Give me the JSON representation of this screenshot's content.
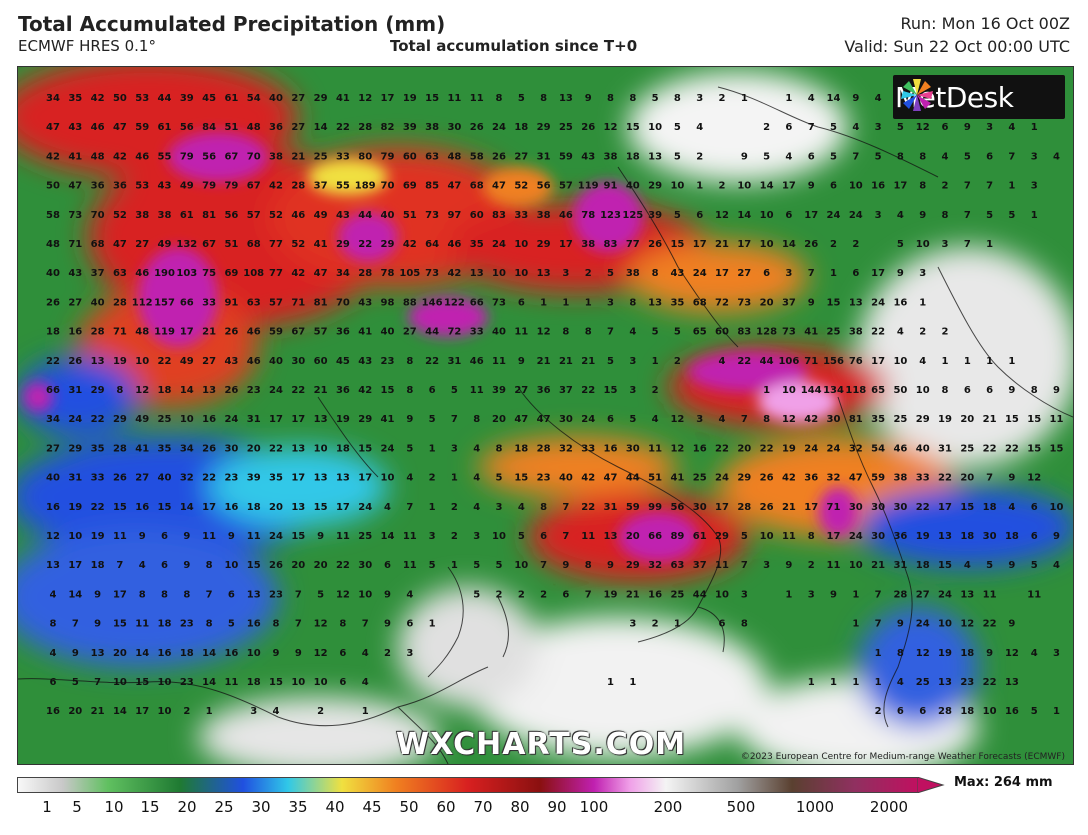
{
  "header": {
    "title": "Total Accumulated Precipitation (mm)",
    "model": "ECMWF HRES 0.1°",
    "subtitle": "Total accumulation since T+0",
    "run": "Run: Mon 16 Oct 00Z",
    "valid": "Valid: Sun 22 Oct 00:00 UTC"
  },
  "map": {
    "logo_text": "MetDesk",
    "watermark": "WXCHARTS.COM",
    "copyright": "©2023 European Centre for Medium-range Weather Forecasts (ECMWF)",
    "grid_values": [
      [
        "34",
        "35",
        "42",
        "50",
        "53",
        "44",
        "39",
        "45",
        "61",
        "54",
        "40",
        "27",
        "29",
        "41",
        "12",
        "17",
        "19",
        "15",
        "11",
        "11",
        "8",
        "5",
        "8",
        "13",
        "9",
        "8",
        "8",
        "5",
        "8",
        "3",
        "2",
        "1",
        "",
        "1",
        "4",
        "14",
        "9",
        "4"
      ],
      [
        "47",
        "43",
        "46",
        "47",
        "59",
        "61",
        "56",
        "84",
        "51",
        "48",
        "36",
        "27",
        "14",
        "22",
        "28",
        "82",
        "39",
        "38",
        "30",
        "26",
        "24",
        "18",
        "29",
        "25",
        "26",
        "12",
        "15",
        "10",
        "5",
        "4",
        "",
        "",
        "2",
        "6",
        "7",
        "5",
        "4",
        "3",
        "5",
        "12",
        "6",
        "9",
        "3",
        "4",
        "1"
      ],
      [
        "42",
        "41",
        "48",
        "42",
        "46",
        "55",
        "79",
        "56",
        "67",
        "70",
        "38",
        "21",
        "25",
        "33",
        "80",
        "79",
        "60",
        "63",
        "48",
        "58",
        "26",
        "27",
        "31",
        "59",
        "43",
        "38",
        "18",
        "13",
        "5",
        "2",
        "",
        "9",
        "5",
        "4",
        "6",
        "5",
        "7",
        "5",
        "8",
        "8",
        "4",
        "5",
        "6",
        "7",
        "3",
        "4"
      ],
      [
        "50",
        "47",
        "36",
        "36",
        "53",
        "43",
        "49",
        "79",
        "79",
        "67",
        "42",
        "28",
        "37",
        "55",
        "189",
        "70",
        "69",
        "85",
        "47",
        "68",
        "47",
        "52",
        "56",
        "57",
        "119",
        "91",
        "40",
        "29",
        "10",
        "1",
        "2",
        "10",
        "14",
        "17",
        "9",
        "6",
        "10",
        "16",
        "17",
        "8",
        "2",
        "7",
        "7",
        "1",
        "3"
      ],
      [
        "58",
        "73",
        "70",
        "52",
        "38",
        "38",
        "61",
        "81",
        "56",
        "57",
        "52",
        "46",
        "49",
        "43",
        "44",
        "40",
        "51",
        "73",
        "97",
        "60",
        "83",
        "33",
        "38",
        "46",
        "78",
        "123",
        "125",
        "39",
        "5",
        "6",
        "12",
        "14",
        "10",
        "6",
        "17",
        "24",
        "24",
        "3",
        "4",
        "9",
        "8",
        "7",
        "5",
        "5",
        "1"
      ],
      [
        "48",
        "71",
        "68",
        "47",
        "27",
        "49",
        "132",
        "67",
        "51",
        "68",
        "77",
        "52",
        "41",
        "29",
        "22",
        "29",
        "42",
        "64",
        "46",
        "35",
        "24",
        "10",
        "29",
        "17",
        "38",
        "83",
        "77",
        "26",
        "15",
        "17",
        "21",
        "17",
        "10",
        "14",
        "26",
        "2",
        "2",
        "",
        "5",
        "10",
        "3",
        "7",
        "1"
      ],
      [
        "40",
        "43",
        "37",
        "63",
        "46",
        "190",
        "103",
        "75",
        "69",
        "108",
        "77",
        "42",
        "47",
        "34",
        "28",
        "78",
        "105",
        "73",
        "42",
        "13",
        "10",
        "10",
        "13",
        "3",
        "2",
        "5",
        "38",
        "8",
        "43",
        "24",
        "17",
        "27",
        "6",
        "3",
        "7",
        "1",
        "6",
        "17",
        "9",
        "3"
      ],
      [
        "26",
        "27",
        "40",
        "28",
        "112",
        "157",
        "66",
        "33",
        "91",
        "63",
        "57",
        "71",
        "81",
        "70",
        "43",
        "98",
        "88",
        "146",
        "122",
        "66",
        "73",
        "6",
        "1",
        "1",
        "1",
        "3",
        "8",
        "13",
        "35",
        "68",
        "72",
        "73",
        "20",
        "37",
        "9",
        "15",
        "13",
        "24",
        "16",
        "1"
      ],
      [
        "18",
        "16",
        "28",
        "71",
        "48",
        "119",
        "17",
        "21",
        "26",
        "46",
        "59",
        "67",
        "57",
        "36",
        "41",
        "40",
        "27",
        "44",
        "72",
        "33",
        "40",
        "11",
        "12",
        "8",
        "8",
        "7",
        "4",
        "5",
        "5",
        "65",
        "60",
        "83",
        "128",
        "73",
        "41",
        "25",
        "38",
        "22",
        "4",
        "2",
        "2"
      ],
      [
        "22",
        "26",
        "13",
        "19",
        "10",
        "22",
        "49",
        "27",
        "43",
        "46",
        "40",
        "30",
        "60",
        "45",
        "43",
        "23",
        "8",
        "22",
        "31",
        "46",
        "11",
        "9",
        "21",
        "21",
        "21",
        "5",
        "3",
        "1",
        "2",
        "",
        "4",
        "22",
        "44",
        "106",
        "71",
        "156",
        "76",
        "17",
        "10",
        "4",
        "1",
        "1",
        "1",
        "1"
      ],
      [
        "66",
        "31",
        "29",
        "8",
        "12",
        "18",
        "14",
        "13",
        "26",
        "23",
        "24",
        "22",
        "21",
        "36",
        "42",
        "15",
        "8",
        "6",
        "5",
        "11",
        "39",
        "27",
        "36",
        "37",
        "22",
        "15",
        "3",
        "2",
        "",
        "",
        "",
        "",
        "1",
        "10",
        "144",
        "134",
        "118",
        "65",
        "50",
        "10",
        "8",
        "6",
        "6",
        "9",
        "8",
        "9",
        "5"
      ],
      [
        "34",
        "24",
        "22",
        "29",
        "49",
        "25",
        "10",
        "16",
        "24",
        "31",
        "17",
        "17",
        "13",
        "19",
        "29",
        "41",
        "9",
        "5",
        "7",
        "8",
        "20",
        "47",
        "47",
        "30",
        "24",
        "6",
        "5",
        "4",
        "12",
        "3",
        "4",
        "7",
        "8",
        "12",
        "42",
        "30",
        "81",
        "35",
        "25",
        "29",
        "19",
        "20",
        "21",
        "15",
        "15",
        "11"
      ],
      [
        "27",
        "29",
        "35",
        "28",
        "41",
        "35",
        "34",
        "26",
        "30",
        "20",
        "22",
        "13",
        "10",
        "18",
        "15",
        "24",
        "5",
        "1",
        "3",
        "4",
        "8",
        "18",
        "28",
        "32",
        "33",
        "16",
        "30",
        "11",
        "12",
        "16",
        "22",
        "20",
        "22",
        "19",
        "24",
        "24",
        "32",
        "54",
        "46",
        "40",
        "31",
        "25",
        "22",
        "22",
        "15",
        "15"
      ],
      [
        "40",
        "31",
        "33",
        "26",
        "27",
        "40",
        "32",
        "22",
        "23",
        "39",
        "35",
        "17",
        "13",
        "13",
        "17",
        "10",
        "4",
        "2",
        "1",
        "4",
        "5",
        "15",
        "23",
        "40",
        "42",
        "47",
        "44",
        "51",
        "41",
        "25",
        "24",
        "29",
        "26",
        "42",
        "36",
        "32",
        "47",
        "59",
        "38",
        "33",
        "22",
        "20",
        "7",
        "9",
        "12"
      ],
      [
        "16",
        "19",
        "22",
        "15",
        "16",
        "15",
        "14",
        "17",
        "16",
        "18",
        "20",
        "13",
        "15",
        "17",
        "24",
        "4",
        "7",
        "1",
        "2",
        "4",
        "3",
        "4",
        "8",
        "7",
        "22",
        "31",
        "59",
        "99",
        "56",
        "30",
        "17",
        "28",
        "26",
        "21",
        "17",
        "71",
        "30",
        "30",
        "30",
        "22",
        "17",
        "15",
        "18",
        "4",
        "6",
        "10"
      ],
      [
        "12",
        "10",
        "19",
        "11",
        "9",
        "6",
        "9",
        "11",
        "9",
        "11",
        "24",
        "15",
        "9",
        "11",
        "25",
        "14",
        "11",
        "3",
        "2",
        "3",
        "10",
        "5",
        "6",
        "7",
        "11",
        "13",
        "20",
        "66",
        "89",
        "61",
        "29",
        "5",
        "10",
        "11",
        "8",
        "17",
        "24",
        "30",
        "36",
        "19",
        "13",
        "18",
        "30",
        "18",
        "6",
        "9"
      ],
      [
        "13",
        "17",
        "18",
        "7",
        "4",
        "6",
        "9",
        "8",
        "10",
        "15",
        "26",
        "20",
        "20",
        "22",
        "30",
        "6",
        "11",
        "5",
        "1",
        "5",
        "5",
        "10",
        "7",
        "9",
        "8",
        "9",
        "29",
        "32",
        "63",
        "37",
        "11",
        "7",
        "3",
        "9",
        "2",
        "11",
        "10",
        "21",
        "31",
        "18",
        "15",
        "4",
        "5",
        "9",
        "5",
        "4"
      ],
      [
        "4",
        "14",
        "9",
        "17",
        "8",
        "8",
        "8",
        "7",
        "6",
        "13",
        "23",
        "7",
        "5",
        "12",
        "10",
        "9",
        "4",
        "",
        "",
        "5",
        "2",
        "2",
        "2",
        "6",
        "7",
        "19",
        "21",
        "16",
        "25",
        "44",
        "10",
        "3",
        "",
        "1",
        "3",
        "9",
        "1",
        "7",
        "28",
        "27",
        "24",
        "13",
        "11",
        "",
        "11"
      ],
      [
        "8",
        "7",
        "9",
        "15",
        "11",
        "18",
        "23",
        "8",
        "5",
        "16",
        "8",
        "7",
        "12",
        "8",
        "7",
        "9",
        "6",
        "1",
        "",
        "",
        "",
        "",
        "",
        "",
        "",
        "",
        "3",
        "2",
        "1",
        "",
        "6",
        "8",
        "",
        "",
        "",
        "",
        "1",
        "7",
        "9",
        "24",
        "10",
        "12",
        "22",
        "9"
      ],
      [
        "4",
        "9",
        "13",
        "20",
        "14",
        "16",
        "18",
        "14",
        "16",
        "10",
        "9",
        "9",
        "12",
        "6",
        "4",
        "2",
        "3",
        "",
        "",
        "",
        "",
        "",
        "",
        "",
        "",
        "",
        "",
        "",
        "",
        "",
        "",
        "",
        "",
        "",
        "",
        "",
        "",
        "1",
        "8",
        "12",
        "19",
        "18",
        "9",
        "12",
        "4",
        "3",
        "1"
      ],
      [
        "6",
        "5",
        "7",
        "10",
        "15",
        "10",
        "23",
        "14",
        "11",
        "18",
        "15",
        "10",
        "10",
        "6",
        "4",
        "",
        "",
        "",
        "",
        "",
        "",
        "",
        "",
        "",
        "",
        "1",
        "1",
        "",
        "",
        "",
        "",
        "",
        "",
        "",
        "1",
        "1",
        "1",
        "1",
        "4",
        "25",
        "13",
        "23",
        "22",
        "13"
      ],
      [
        "16",
        "20",
        "21",
        "14",
        "17",
        "10",
        "2",
        "1",
        "",
        "3",
        "4",
        "",
        "2",
        "",
        "1",
        "",
        "",
        "",
        "",
        "",
        "",
        "",
        "",
        "",
        "",
        "",
        "",
        "",
        "",
        "",
        "",
        "",
        "",
        "",
        "",
        "",
        "",
        "2",
        "6",
        "6",
        "28",
        "18",
        "10",
        "16",
        "5",
        "1"
      ]
    ]
  },
  "legend": {
    "ticks": [
      "1",
      "5",
      "10",
      "15",
      "20",
      "25",
      "30",
      "35",
      "40",
      "45",
      "50",
      "60",
      "70",
      "80",
      "90",
      "100",
      "200",
      "500",
      "1000",
      "2000"
    ],
    "max_label": "Max: 264 mm"
  },
  "colors": {
    "green_dark": "#1f7a32",
    "green": "#3aa54a",
    "blue": "#2050e0",
    "cyan": "#30c8e8",
    "yellow": "#f0e040",
    "orange": "#f08020",
    "red": "#d82020",
    "magenta": "#c020b0",
    "pink": "#f0a0e8",
    "white": "#f4f4f4"
  }
}
